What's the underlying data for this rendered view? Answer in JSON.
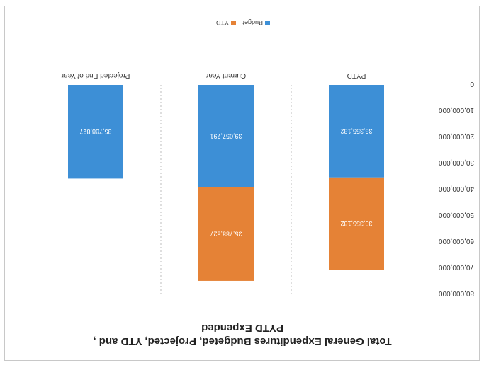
{
  "chart_data": {
    "type": "bar",
    "stacked": true,
    "orientation": "rotated-180",
    "title": "Total General Expenditures Budgeted, Projected, YTD and , PYTD Expended",
    "title_lines": [
      "Total General Expenditures Budgeted, Projected, YTD and ,",
      "PYTD Expended"
    ],
    "categories": [
      "PYTD",
      "Current Year",
      "Projected End of Year"
    ],
    "series": [
      {
        "name": "Budget",
        "color": "#3d8fd6",
        "values": [
          35355182,
          39057791,
          35788827
        ]
      },
      {
        "name": "YTD",
        "color": "#e58236",
        "values": [
          35355182,
          35788827,
          null
        ]
      }
    ],
    "data_labels": [
      [
        "35,355,182",
        "39,057,791",
        "35,788,827"
      ],
      [
        "35,355,182",
        "35,788,827",
        ""
      ]
    ],
    "ylim": [
      0,
      80000000
    ],
    "yticks": [
      0,
      10000000,
      20000000,
      30000000,
      40000000,
      50000000,
      60000000,
      70000000,
      80000000
    ],
    "ytick_labels": [
      "0",
      "10,000,000",
      "20,000,000",
      "30,000,000",
      "40,000,000",
      "50,000,000",
      "60,000,000",
      "70,000,000",
      "80,000,000"
    ],
    "grid": "vertical dotted separators between categories",
    "legend": "top"
  }
}
